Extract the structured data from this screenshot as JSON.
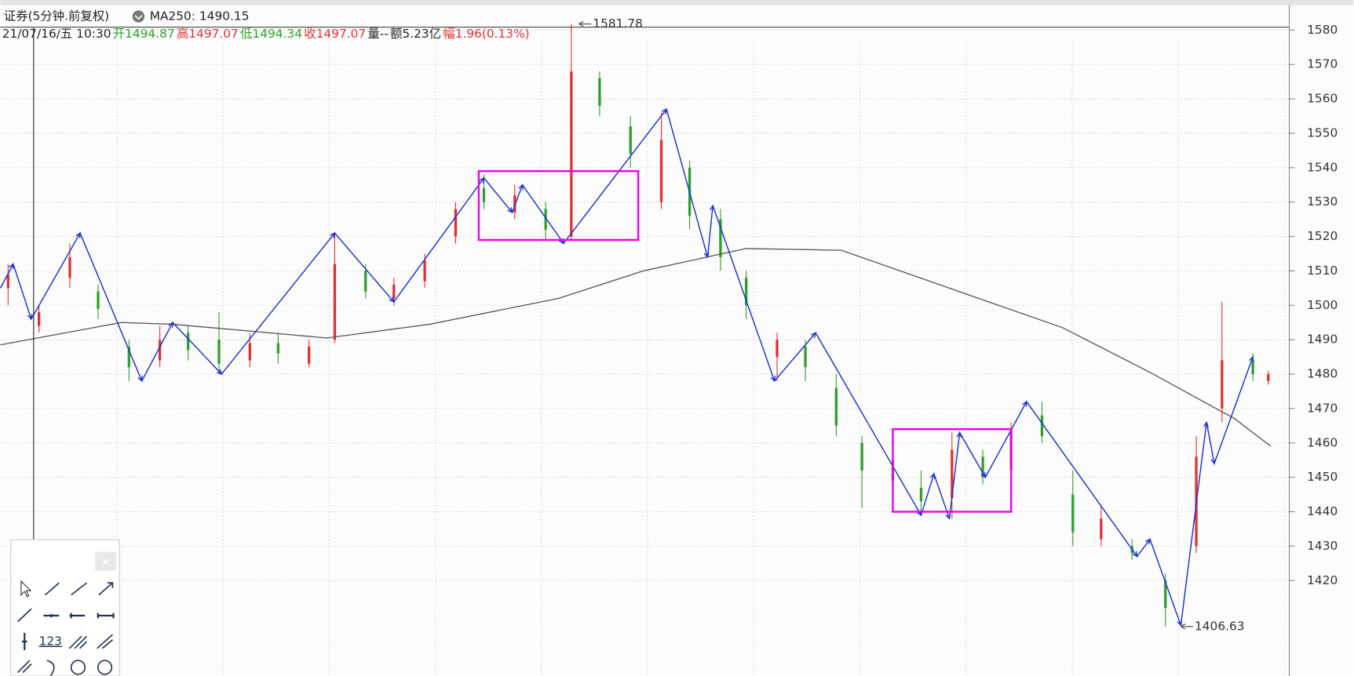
{
  "chart_data": {
    "type": "candlestick",
    "title": "证券(5分钟.前复权)",
    "ma_label": "MA250: 1490.15",
    "quote": [
      {
        "text": "21/07/16/五 10:30",
        "color": "#222222"
      },
      {
        "text": "开1494.87",
        "color": "#2e9e2e"
      },
      {
        "text": "高1497.07",
        "color": "#e03030"
      },
      {
        "text": "低1494.34",
        "color": "#2e9e2e"
      },
      {
        "text": "收1497.07",
        "color": "#e03030"
      },
      {
        "text": "量--",
        "color": "#222222"
      },
      {
        "text": "额5.23亿",
        "color": "#222222"
      },
      {
        "text": "幅1.96(0.13%)",
        "color": "#e03030"
      }
    ],
    "up_color": "#e03030",
    "down_color": "#2e9e2e",
    "xlim": [
      0,
      500
    ],
    "ylim": [
      1393,
      1593
    ],
    "yticks": [
      1420,
      1430,
      1440,
      1450,
      1460,
      1470,
      1480,
      1490,
      1500,
      1510,
      1520,
      1530,
      1540,
      1550,
      1560,
      1570,
      1580
    ],
    "grid": true,
    "candles": {
      "x": [
        3,
        15,
        27,
        38,
        50,
        62,
        73,
        85,
        97,
        108,
        120,
        130,
        142,
        153,
        165,
        177,
        188,
        200,
        212,
        222,
        233,
        245,
        257,
        268,
        280,
        290,
        302,
        313,
        325,
        335,
        347,
        358,
        370,
        382,
        393,
        405,
        417,
        428,
        440,
        453,
        465,
        475,
        487,
        493
      ],
      "open": [
        1505,
        1494,
        1508,
        1504,
        1488,
        1484,
        1492,
        1490,
        1484,
        1489,
        1483,
        1490,
        1510,
        1502,
        1507,
        1520,
        1534,
        1527,
        1528,
        1520,
        1566,
        1552,
        1530,
        1540,
        1525,
        1508,
        1485,
        1488,
        1476,
        1460,
        1455,
        1447,
        1444,
        1456,
        1452,
        1468,
        1445,
        1432,
        1430,
        1420,
        1430,
        1470,
        1484,
        1478
      ],
      "high": [
        1512,
        1500,
        1518,
        1506,
        1490,
        1494,
        1494,
        1498,
        1492,
        1492,
        1490,
        1521,
        1512,
        1508,
        1515,
        1530,
        1538,
        1535,
        1530,
        1581.78,
        1568,
        1555,
        1556,
        1542,
        1528,
        1510,
        1492,
        1490,
        1480,
        1462,
        1460,
        1452,
        1463,
        1458,
        1466,
        1472,
        1452,
        1442,
        1432,
        1422,
        1462,
        1501,
        1486,
        1481
      ],
      "low": [
        1500,
        1492,
        1505,
        1496,
        1478,
        1482,
        1484,
        1480,
        1482,
        1483,
        1482,
        1489,
        1502,
        1500,
        1505,
        1518,
        1528,
        1525,
        1519,
        1519,
        1555,
        1540,
        1528,
        1522,
        1510,
        1496,
        1478,
        1478,
        1462,
        1441,
        1446,
        1439,
        1438,
        1448,
        1450,
        1460,
        1430,
        1430,
        1426,
        1406.63,
        1428,
        1466,
        1478,
        1477
      ],
      "close": [
        1509,
        1498,
        1514,
        1499,
        1482,
        1490,
        1487,
        1483,
        1489,
        1486,
        1488,
        1512,
        1504,
        1506,
        1513,
        1528,
        1530,
        1532,
        1522,
        1568,
        1558,
        1544,
        1548,
        1526,
        1514,
        1500,
        1490,
        1482,
        1465,
        1452,
        1449,
        1443,
        1458,
        1450,
        1464,
        1462,
        1434,
        1438,
        1428,
        1412,
        1456,
        1484,
        1480,
        1480
      ]
    },
    "ma": {
      "name": "MA250",
      "color": "#555555",
      "x": [
        0,
        47,
        67,
        127,
        167,
        217,
        250,
        290,
        327,
        367,
        413,
        447,
        480,
        494
      ],
      "values": [
        1488.5,
        1495,
        1494.5,
        1490.5,
        1494.5,
        1502,
        1510,
        1516.5,
        1516,
        1505.5,
        1493.5,
        1480.5,
        1467,
        1459
      ]
    },
    "zigzag": {
      "color": "#1a2fd0",
      "x": [
        0,
        5,
        12,
        31,
        55,
        67,
        86,
        130,
        153,
        188,
        199,
        203,
        219,
        259,
        275,
        277,
        301,
        317,
        358,
        363,
        369,
        373,
        383,
        399,
        442,
        447,
        459,
        469,
        472,
        487
      ],
      "values": [
        1505,
        1512,
        1496,
        1521,
        1478,
        1495,
        1480,
        1521,
        1501,
        1537,
        1527,
        1535,
        1518,
        1557,
        1514,
        1529,
        1478,
        1492,
        1439,
        1451,
        1438,
        1463,
        1450,
        1472,
        1427,
        1432,
        1407,
        1466,
        1454,
        1485
      ]
    },
    "boxes": [
      {
        "color": "#ee00ee",
        "x": [
          186,
          248
        ],
        "y": [
          1519,
          1539
        ]
      },
      {
        "color": "#ee00ee",
        "x": [
          347,
          393
        ],
        "y": [
          1440,
          1464
        ]
      }
    ],
    "annotations": [
      {
        "x": 225,
        "value": 1581.78
      },
      {
        "x": 459,
        "value": 1406.63
      }
    ],
    "toolbar_label": "123"
  }
}
